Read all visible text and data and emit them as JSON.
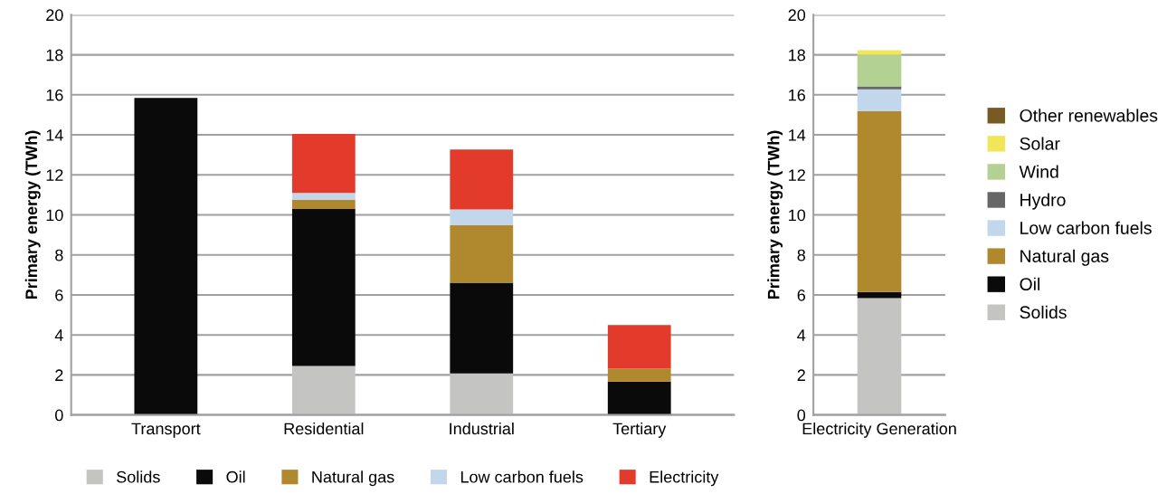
{
  "chart_data": [
    {
      "type": "bar",
      "stacked": true,
      "ylabel": "Primary energy (TWh)",
      "categories": [
        "Transport",
        "Residential",
        "Industrial",
        "Tertiary"
      ],
      "ylim": [
        0,
        20
      ],
      "yticks": [
        0,
        2,
        4,
        6,
        8,
        10,
        12,
        14,
        16,
        18,
        20
      ],
      "grid": "y",
      "legend": "bottom",
      "series": [
        {
          "name": "Solids",
          "color": "#c4c4c2",
          "values": [
            0,
            2.45,
            2.08,
            0
          ]
        },
        {
          "name": "Oil",
          "color": "#0a0a0a",
          "values": [
            15.85,
            7.85,
            4.53,
            1.67
          ]
        },
        {
          "name": "Natural gas",
          "color": "#b0892e",
          "values": [
            0,
            0.45,
            2.87,
            0.64
          ]
        },
        {
          "name": "Low carbon fuels",
          "color": "#c2d7ec",
          "values": [
            0,
            0.35,
            0.79,
            0
          ]
        },
        {
          "name": "Electricity",
          "color": "#e33b2b",
          "values": [
            0,
            2.95,
            3.0,
            2.18
          ]
        }
      ]
    },
    {
      "type": "bar",
      "stacked": true,
      "ylabel": "Primary energy (TWh)",
      "categories": [
        "Electricity Generation"
      ],
      "ylim": [
        0,
        20
      ],
      "yticks": [
        0,
        2,
        4,
        6,
        8,
        10,
        12,
        14,
        16,
        18,
        20
      ],
      "grid": "y",
      "legend": "right",
      "series": [
        {
          "name": "Solids",
          "color": "#c4c4c2",
          "values": [
            5.84
          ]
        },
        {
          "name": "Oil",
          "color": "#0a0a0a",
          "values": [
            0.31
          ]
        },
        {
          "name": "Natural gas",
          "color": "#b0892e",
          "values": [
            9.03
          ]
        },
        {
          "name": "Low carbon fuels",
          "color": "#c2d7ec",
          "values": [
            1.1
          ]
        },
        {
          "name": "Hydro",
          "color": "#666666",
          "values": [
            0.14
          ]
        },
        {
          "name": "Wind",
          "color": "#b3d193",
          "values": [
            1.58
          ]
        },
        {
          "name": "Solar",
          "color": "#f1e65a",
          "values": [
            0.23
          ]
        },
        {
          "name": "Other renewables",
          "color": "#7a5a24",
          "values": [
            0
          ]
        }
      ]
    }
  ]
}
